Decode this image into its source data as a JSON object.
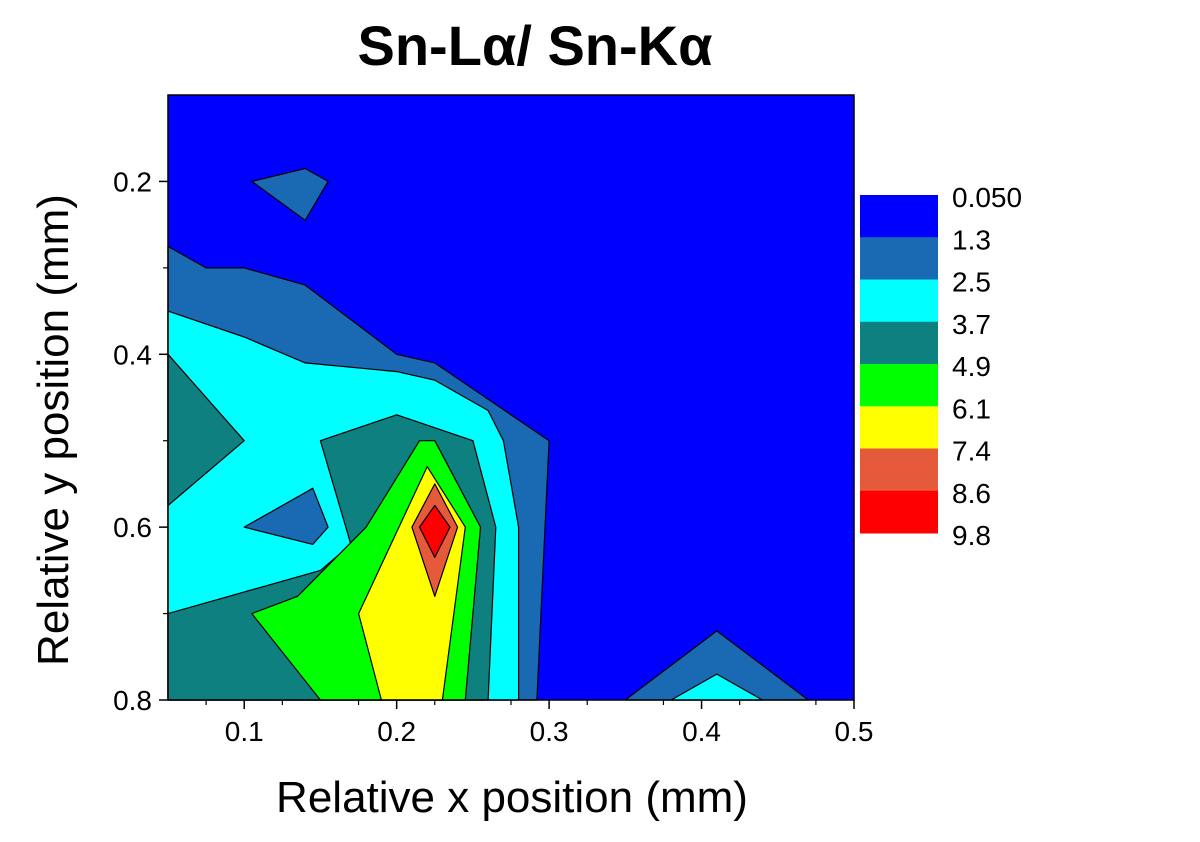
{
  "chart_data": {
    "type": "contour",
    "title": "Sn-Lα/ Sn-Kα",
    "xlabel": "Relative x position (mm)",
    "ylabel": "Relative y position (mm)",
    "xlim": [
      0.05,
      0.5
    ],
    "ylim": [
      0.1,
      0.8
    ],
    "y_inverted": true,
    "xticks": [
      0.1,
      0.2,
      0.3,
      0.4,
      0.5
    ],
    "xtick_labels": [
      "0.1",
      "0.2",
      "0.3",
      "0.4",
      "0.5"
    ],
    "yticks": [
      0.2,
      0.4,
      0.6,
      0.8
    ],
    "ytick_labels": [
      "0.2",
      "0.4",
      "0.6",
      "0.8"
    ],
    "levels": [
      0.05,
      1.3,
      2.5,
      3.7,
      4.9,
      6.1,
      7.4,
      8.6,
      9.8
    ],
    "level_labels": [
      "0.050",
      "1.3",
      "2.5",
      "3.7",
      "4.9",
      "6.1",
      "7.4",
      "8.6",
      "9.8"
    ],
    "colors": [
      "#0000ff",
      "#1a6ab3",
      "#00ffff",
      "#0e8080",
      "#00ff00",
      "#ffff00",
      "#e65a3c",
      "#ff0000"
    ],
    "regions": [
      {
        "level": 1,
        "points": [
          [
            0.05,
            0.275
          ],
          [
            0.075,
            0.3
          ],
          [
            0.1,
            0.3
          ],
          [
            0.14,
            0.32
          ],
          [
            0.2,
            0.4
          ],
          [
            0.225,
            0.41
          ],
          [
            0.3,
            0.5
          ],
          [
            0.292,
            0.8
          ],
          [
            0.05,
            0.8
          ]
        ]
      },
      {
        "level": 1,
        "points": [
          [
            0.105,
            0.2
          ],
          [
            0.14,
            0.185
          ],
          [
            0.155,
            0.2
          ],
          [
            0.14,
            0.245
          ]
        ]
      },
      {
        "level": 1,
        "points": [
          [
            0.35,
            0.8
          ],
          [
            0.41,
            0.72
          ],
          [
            0.47,
            0.8
          ]
        ]
      },
      {
        "level": 2,
        "points": [
          [
            0.05,
            0.35
          ],
          [
            0.1,
            0.38
          ],
          [
            0.14,
            0.41
          ],
          [
            0.2,
            0.42
          ],
          [
            0.225,
            0.43
          ],
          [
            0.26,
            0.465
          ],
          [
            0.27,
            0.5
          ],
          [
            0.28,
            0.6
          ],
          [
            0.28,
            0.8
          ],
          [
            0.05,
            0.8
          ]
        ]
      },
      {
        "level": 2,
        "points": [
          [
            0.38,
            0.8
          ],
          [
            0.41,
            0.77
          ],
          [
            0.44,
            0.8
          ]
        ]
      },
      {
        "level": 3,
        "points": [
          [
            0.05,
            0.4
          ],
          [
            0.1,
            0.5
          ],
          [
            0.05,
            0.575
          ]
        ]
      },
      {
        "level": 3,
        "points": [
          [
            0.05,
            0.7
          ],
          [
            0.09,
            0.68
          ],
          [
            0.15,
            0.65
          ],
          [
            0.17,
            0.62
          ],
          [
            0.15,
            0.5
          ],
          [
            0.2,
            0.47
          ],
          [
            0.25,
            0.5
          ],
          [
            0.265,
            0.6
          ],
          [
            0.26,
            0.8
          ],
          [
            0.05,
            0.8
          ]
        ]
      },
      {
        "level": 1,
        "points": [
          [
            0.1,
            0.6
          ],
          [
            0.145,
            0.555
          ],
          [
            0.155,
            0.6
          ],
          [
            0.145,
            0.62
          ]
        ]
      },
      {
        "level": 4,
        "points": [
          [
            0.105,
            0.7
          ],
          [
            0.135,
            0.68
          ],
          [
            0.18,
            0.6
          ],
          [
            0.215,
            0.5
          ],
          [
            0.225,
            0.5
          ],
          [
            0.255,
            0.6
          ],
          [
            0.245,
            0.8
          ],
          [
            0.15,
            0.8
          ]
        ]
      },
      {
        "level": 5,
        "points": [
          [
            0.175,
            0.7
          ],
          [
            0.22,
            0.53
          ],
          [
            0.245,
            0.6
          ],
          [
            0.23,
            0.8
          ],
          [
            0.19,
            0.8
          ]
        ]
      },
      {
        "level": 6,
        "points": [
          [
            0.21,
            0.6
          ],
          [
            0.225,
            0.55
          ],
          [
            0.24,
            0.6
          ],
          [
            0.225,
            0.68
          ]
        ]
      },
      {
        "level": 7,
        "points": [
          [
            0.215,
            0.6
          ],
          [
            0.225,
            0.575
          ],
          [
            0.235,
            0.6
          ],
          [
            0.225,
            0.635
          ]
        ]
      }
    ]
  }
}
